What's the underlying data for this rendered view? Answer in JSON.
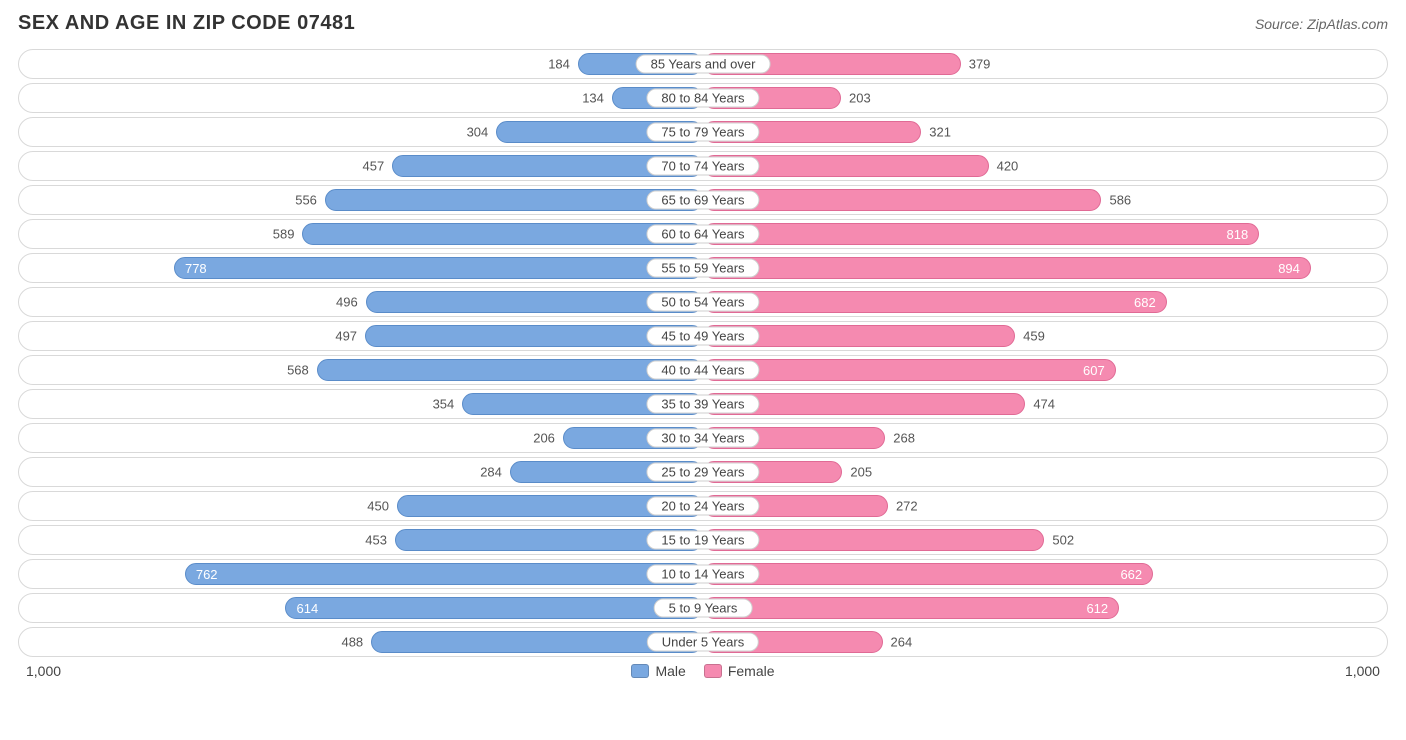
{
  "title": "SEX AND AGE IN ZIP CODE 07481",
  "source": "Source: ZipAtlas.com",
  "chart": {
    "type": "diverging-bar",
    "max_value": 1000,
    "axis_label_left": "1,000",
    "axis_label_right": "1,000",
    "inside_label_threshold": 590,
    "colors": {
      "male_bar": "#7aa8e0",
      "female_bar": "#f58ab0",
      "male_border": "#5a8cc9",
      "female_border": "#e06a95",
      "row_border": "#d9d9d9",
      "text_inside": "#ffffff",
      "text_outside": "#555555",
      "title": "#333333",
      "source": "#666666",
      "background": "#ffffff"
    },
    "legend": [
      {
        "label": "Male",
        "color": "#7aa8e0"
      },
      {
        "label": "Female",
        "color": "#f58ab0"
      }
    ],
    "rows": [
      {
        "label": "85 Years and over",
        "male": 184,
        "female": 379
      },
      {
        "label": "80 to 84 Years",
        "male": 134,
        "female": 203
      },
      {
        "label": "75 to 79 Years",
        "male": 304,
        "female": 321
      },
      {
        "label": "70 to 74 Years",
        "male": 457,
        "female": 420
      },
      {
        "label": "65 to 69 Years",
        "male": 556,
        "female": 586
      },
      {
        "label": "60 to 64 Years",
        "male": 589,
        "female": 818
      },
      {
        "label": "55 to 59 Years",
        "male": 778,
        "female": 894
      },
      {
        "label": "50 to 54 Years",
        "male": 496,
        "female": 682
      },
      {
        "label": "45 to 49 Years",
        "male": 497,
        "female": 459
      },
      {
        "label": "40 to 44 Years",
        "male": 568,
        "female": 607
      },
      {
        "label": "35 to 39 Years",
        "male": 354,
        "female": 474
      },
      {
        "label": "30 to 34 Years",
        "male": 206,
        "female": 268
      },
      {
        "label": "25 to 29 Years",
        "male": 284,
        "female": 205
      },
      {
        "label": "20 to 24 Years",
        "male": 450,
        "female": 272
      },
      {
        "label": "15 to 19 Years",
        "male": 453,
        "female": 502
      },
      {
        "label": "10 to 14 Years",
        "male": 762,
        "female": 662
      },
      {
        "label": "5 to 9 Years",
        "male": 614,
        "female": 612
      },
      {
        "label": "Under 5 Years",
        "male": 488,
        "female": 264
      }
    ]
  }
}
